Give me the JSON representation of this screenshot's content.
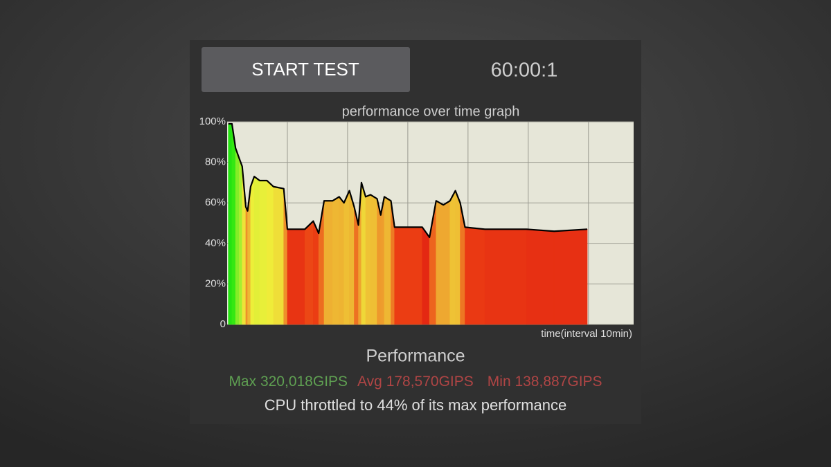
{
  "header": {
    "button": "START TEST",
    "timer": "60:00:1"
  },
  "chart_data": {
    "type": "area",
    "title": "performance over time graph",
    "x_label": "time(interval 10min)",
    "x": [
      0.2,
      0.8,
      1.4,
      2.0,
      2.5,
      3.1,
      3.4,
      3.9,
      4.5,
      5.4,
      6.6,
      7.7,
      9.4,
      10.0,
      12.9,
      14.3,
      15.2,
      16.1,
      17.5,
      18.6,
      19.4,
      20.3,
      21.1,
      21.8,
      22.3,
      23.0,
      23.8,
      24.9,
      25.5,
      26.1,
      27.2,
      27.8,
      32.4,
      33.6,
      34.7,
      35.9,
      37.0,
      37.9,
      38.7,
      39.5,
      42.8,
      49.7,
      54.3,
      59.8
    ],
    "series": [
      {
        "name": "performance",
        "color": "#000000",
        "values": [
          99,
          99,
          87,
          82,
          78,
          58,
          56,
          68,
          73,
          71,
          71,
          68,
          67,
          47,
          47,
          51,
          45,
          61,
          61,
          63,
          60,
          66,
          58,
          49,
          70,
          63,
          64,
          62,
          54,
          63,
          61,
          48,
          48,
          43,
          61,
          59,
          61,
          66,
          60,
          48,
          47,
          47,
          46,
          47
        ]
      }
    ],
    "xlim": [
      0,
      67.5
    ],
    "xticks": [
      10,
      20,
      30,
      40,
      50,
      60
    ],
    "xtick_labels": false,
    "ylim": [
      0,
      100
    ],
    "yticks": [
      {
        "value": 0,
        "label": "0"
      },
      {
        "value": 20,
        "label": "20%"
      },
      {
        "value": 40,
        "label": "40%"
      },
      {
        "value": 60,
        "label": "60%"
      },
      {
        "value": 80,
        "label": "80%"
      },
      {
        "value": 100,
        "label": "100%"
      }
    ],
    "grid": true
  },
  "summary": {
    "heading": "Performance",
    "max": "Max 320,018GIPS",
    "avg": "Avg 178,570GIPS",
    "min": "Min 138,887GIPS",
    "note": "CPU throttled to 44% of its max performance"
  }
}
